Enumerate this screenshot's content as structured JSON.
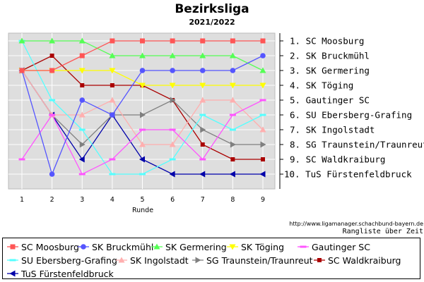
{
  "chart_data": {
    "type": "line",
    "title": "Bezirksliga",
    "subtitle": "2021/2022",
    "xlabel": "Runde",
    "x": [
      1,
      2,
      3,
      4,
      5,
      6,
      7,
      8,
      9
    ],
    "y_axis": "rank (1 at top, 10 at bottom), inverted",
    "xlim": [
      0.5,
      9.5
    ],
    "ylim": [
      0.5,
      10.5
    ],
    "grid": true,
    "legend_position": "bottom",
    "rank_labels": [
      "1.  SC Moosburg",
      "2.  SK Bruckmühl",
      "3.  SK Germering",
      "4.  SK Töging",
      "5.  Gautinger SC",
      "6.  SU Ebersberg-Grafing",
      "7.  SK Ingolstadt",
      "8.  SG Traunstein/Traunreut",
      "9.  SC Waldkraiburg",
      "10.  TuS Fürstenfeldbruck"
    ],
    "source_text": "http://www.ligamanager.schachbund-bayern.de",
    "caption": "Rangliste über Zeit",
    "series": [
      {
        "name": "SC Moosburg",
        "color": "#ff5555",
        "marker": "square",
        "values": [
          3,
          3,
          2,
          1,
          1,
          1,
          1,
          1,
          1
        ]
      },
      {
        "name": "SK Bruckmühl",
        "color": "#5555ff",
        "marker": "circle",
        "values": [
          3,
          10,
          5,
          6,
          3,
          3,
          3,
          3,
          2
        ]
      },
      {
        "name": "SK Germering",
        "color": "#55ff55",
        "marker": "triangle-up",
        "values": [
          1,
          1,
          1,
          2,
          2,
          2,
          2,
          2,
          3
        ]
      },
      {
        "name": "SK Töging",
        "color": "#ffff00",
        "marker": "triangle-down",
        "values": [
          3,
          3,
          3,
          3,
          4,
          4,
          4,
          4,
          4
        ]
      },
      {
        "name": "Gautinger SC",
        "color": "#ff55ff",
        "marker": "dash",
        "values": [
          9,
          6,
          10,
          9,
          7,
          7,
          9,
          6,
          5
        ]
      },
      {
        "name": "SU Ebersberg-Grafing",
        "color": "#55ffff",
        "marker": "dash",
        "values": [
          1,
          5,
          7,
          10,
          10,
          9,
          6,
          7,
          6
        ]
      },
      {
        "name": "SK Ingolstadt",
        "color": "#ffafaf",
        "marker": "triangle-up",
        "values": [
          3,
          6,
          6,
          5,
          8,
          8,
          5,
          5,
          7
        ]
      },
      {
        "name": "SG Traunstein/Traunreut",
        "color": "#808080",
        "marker": "triangle-right",
        "values": [
          3,
          6,
          8,
          6,
          6,
          5,
          7,
          8,
          8
        ]
      },
      {
        "name": "SC Waldkraiburg",
        "color": "#aa0000",
        "marker": "small-square",
        "values": [
          3,
          2,
          4,
          4,
          4,
          5,
          8,
          9,
          9
        ]
      },
      {
        "name": "TuS Fürstenfeldbruck",
        "color": "#0000aa",
        "marker": "triangle-left",
        "values": [
          3,
          6,
          9,
          6,
          9,
          10,
          10,
          10,
          10
        ]
      }
    ]
  }
}
